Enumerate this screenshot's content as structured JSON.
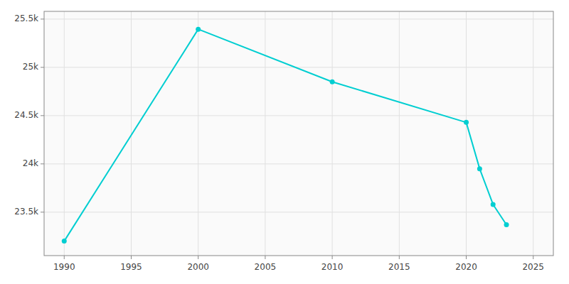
{
  "chart_data": {
    "type": "line",
    "x": [
      1990,
      2000,
      2010,
      2020,
      2021,
      2022,
      2023
    ],
    "values": [
      23200,
      25395,
      24850,
      24430,
      23950,
      23580,
      23370
    ],
    "color": "#00CED1",
    "marker": "circle",
    "xlim": [
      1988.5,
      2026.5
    ],
    "ylim": [
      23050,
      25580
    ],
    "xticks": [
      1990,
      1995,
      2000,
      2005,
      2010,
      2015,
      2020,
      2025
    ],
    "yticks": [
      {
        "value": 23500,
        "label": "23.5k"
      },
      {
        "value": 24000,
        "label": "24k"
      },
      {
        "value": 24500,
        "label": "24.5k"
      },
      {
        "value": 25000,
        "label": "25k"
      },
      {
        "value": 25500,
        "label": "25.5k"
      }
    ],
    "grid": true
  }
}
